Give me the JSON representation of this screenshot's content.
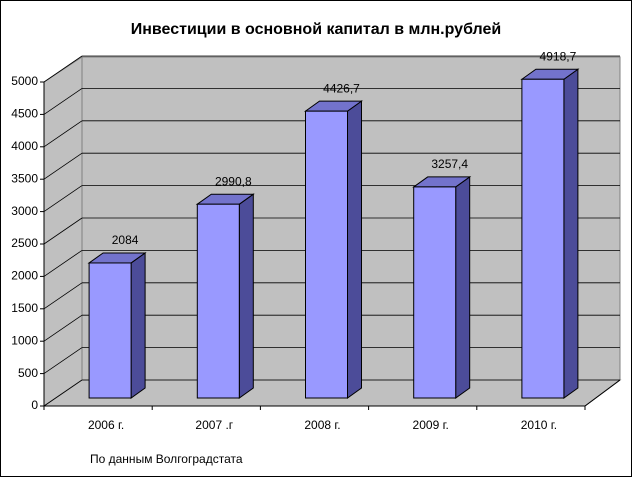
{
  "chart_data": {
    "type": "bar",
    "title": "Инвестиции в основной капитал в млн.рублей",
    "note": "По данным Волгоградстата",
    "categories": [
      "2006 г.",
      "2007 .г",
      "2008 г.",
      "2009 г.",
      "2010 г."
    ],
    "values": [
      2084,
      2990.8,
      4426.7,
      3257.4,
      4918.7
    ],
    "value_labels": [
      "2084",
      "2990,8",
      "4426,7",
      "3257,4",
      "4918,7"
    ],
    "color": "#9999ff",
    "ylim": [
      0,
      5000
    ],
    "yticks": [
      0,
      500,
      1000,
      1500,
      2000,
      2500,
      3000,
      3500,
      4000,
      4500,
      5000
    ],
    "grid": true
  }
}
